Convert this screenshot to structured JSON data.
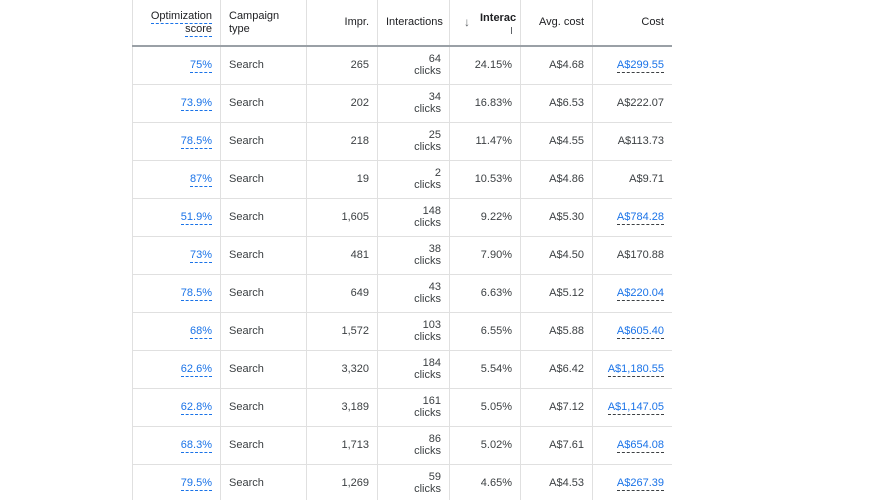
{
  "columns": {
    "opt_line1": "Optimization",
    "opt_line2": "score",
    "type_line1": "Campaign",
    "type_line2": "type",
    "impr": "Impr.",
    "interactions": "Interactions",
    "interaction_rate": "Interac",
    "avg_cost": "Avg. cost",
    "cost": "Cost"
  },
  "rows": [
    {
      "opt": "75%",
      "type": "Search",
      "impr": "265",
      "int_n": "64",
      "int_u": "clicks",
      "rate": "24.15%",
      "avg": "A$4.68",
      "cost": "A$299.55",
      "cost_link": true
    },
    {
      "opt": "73.9%",
      "type": "Search",
      "impr": "202",
      "int_n": "34",
      "int_u": "clicks",
      "rate": "16.83%",
      "avg": "A$6.53",
      "cost": "A$222.07",
      "cost_link": false
    },
    {
      "opt": "78.5%",
      "type": "Search",
      "impr": "218",
      "int_n": "25",
      "int_u": "clicks",
      "rate": "11.47%",
      "avg": "A$4.55",
      "cost": "A$113.73",
      "cost_link": false
    },
    {
      "opt": "87%",
      "type": "Search",
      "impr": "19",
      "int_n": "2",
      "int_u": "clicks",
      "rate": "10.53%",
      "avg": "A$4.86",
      "cost": "A$9.71",
      "cost_link": false
    },
    {
      "opt": "51.9%",
      "type": "Search",
      "impr": "1,605",
      "int_n": "148",
      "int_u": "clicks",
      "rate": "9.22%",
      "avg": "A$5.30",
      "cost": "A$784.28",
      "cost_link": true
    },
    {
      "opt": "73%",
      "type": "Search",
      "impr": "481",
      "int_n": "38",
      "int_u": "clicks",
      "rate": "7.90%",
      "avg": "A$4.50",
      "cost": "A$170.88",
      "cost_link": false
    },
    {
      "opt": "78.5%",
      "type": "Search",
      "impr": "649",
      "int_n": "43",
      "int_u": "clicks",
      "rate": "6.63%",
      "avg": "A$5.12",
      "cost": "A$220.04",
      "cost_link": true
    },
    {
      "opt": "68%",
      "type": "Search",
      "impr": "1,572",
      "int_n": "103",
      "int_u": "clicks",
      "rate": "6.55%",
      "avg": "A$5.88",
      "cost": "A$605.40",
      "cost_link": true
    },
    {
      "opt": "62.6%",
      "type": "Search",
      "impr": "3,320",
      "int_n": "184",
      "int_u": "clicks",
      "rate": "5.54%",
      "avg": "A$6.42",
      "cost": "A$1,180.55",
      "cost_link": true
    },
    {
      "opt": "62.8%",
      "type": "Search",
      "impr": "3,189",
      "int_n": "161",
      "int_u": "clicks",
      "rate": "5.05%",
      "avg": "A$7.12",
      "cost": "A$1,147.05",
      "cost_link": true
    },
    {
      "opt": "68.3%",
      "type": "Search",
      "impr": "1,713",
      "int_n": "86",
      "int_u": "clicks",
      "rate": "5.02%",
      "avg": "A$7.61",
      "cost": "A$654.08",
      "cost_link": true
    },
    {
      "opt": "79.5%",
      "type": "Search",
      "impr": "1,269",
      "int_n": "59",
      "int_u": "clicks",
      "rate": "4.65%",
      "avg": "A$4.53",
      "cost": "A$267.39",
      "cost_link": true
    }
  ]
}
